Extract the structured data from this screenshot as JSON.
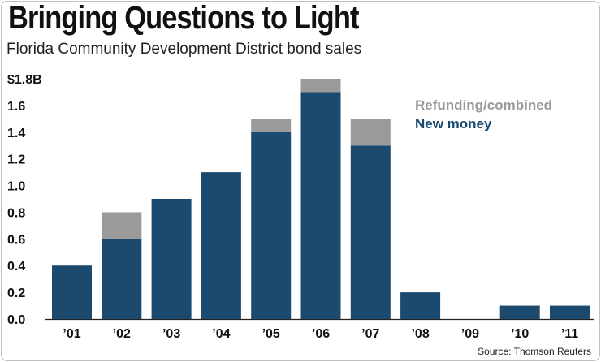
{
  "title": "Bringing Questions to Light",
  "subtitle": "Florida Community Development District bond sales",
  "source": "Source: Thomson Reuters",
  "colors": {
    "new_money": "#1c4a6e",
    "refunding": "#9a9a9a",
    "text": "#111111"
  },
  "chart_data": {
    "type": "bar",
    "stacked": true,
    "categories": [
      "’01",
      "’02",
      "’03",
      "’04",
      "’05",
      "’06",
      "’07",
      "’08",
      "’09",
      "’10",
      "’11"
    ],
    "series": [
      {
        "name": "New money",
        "values": [
          0.4,
          0.6,
          0.9,
          1.1,
          1.4,
          1.7,
          1.3,
          0.2,
          0.0,
          0.1,
          0.1
        ]
      },
      {
        "name": "Refunding/combined",
        "values": [
          0.0,
          0.2,
          0.0,
          0.0,
          0.1,
          0.1,
          0.2,
          0.0,
          0.0,
          0.0,
          0.0
        ]
      }
    ],
    "yticks": [
      "0.0",
      "0.2",
      "0.4",
      "0.6",
      "0.8",
      "1.0",
      "1.2",
      "1.4",
      "1.6",
      "$1.8B"
    ],
    "ylim": [
      0,
      1.8
    ],
    "unit": "billions of dollars",
    "legend": [
      "Refunding/combined",
      "New money"
    ],
    "legend_position": "top-right",
    "grid": false
  }
}
